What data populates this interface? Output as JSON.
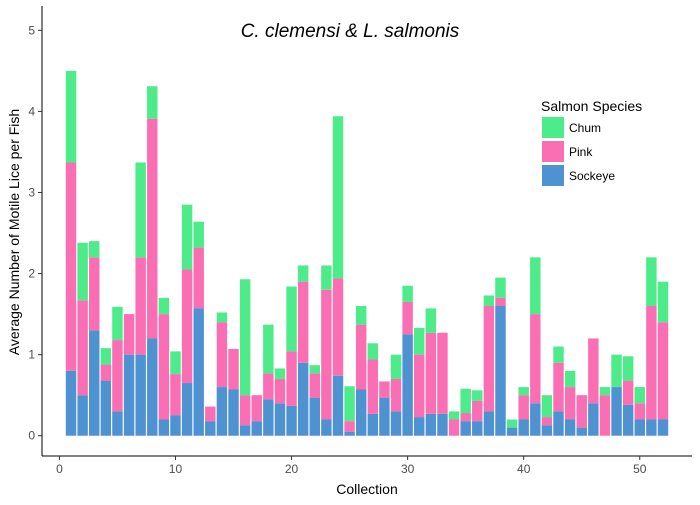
{
  "chart_data": {
    "type": "bar",
    "stacked": true,
    "title": "C. clemensi & L. salmonis",
    "xlabel": "Collection",
    "ylabel": "Average Number of Motile Lice per Fish",
    "xlim": [
      -1.5,
      54.5
    ],
    "ylim": [
      -0.25,
      5.3
    ],
    "xticks": [
      0,
      10,
      20,
      30,
      40,
      50
    ],
    "yticks": [
      0,
      1,
      2,
      3,
      4,
      5
    ],
    "grid": false,
    "legend": {
      "title": "Salmon Species",
      "position": "right-top"
    },
    "x": [
      1,
      2,
      3,
      4,
      5,
      6,
      7,
      8,
      9,
      10,
      11,
      12,
      13,
      14,
      15,
      16,
      17,
      18,
      19,
      20,
      21,
      22,
      23,
      24,
      25,
      26,
      27,
      28,
      29,
      30,
      31,
      32,
      33,
      34,
      35,
      36,
      37,
      38,
      39,
      40,
      41,
      42,
      43,
      44,
      45,
      46,
      47,
      48,
      49,
      50,
      51,
      52
    ],
    "series": [
      {
        "name": "Sockeye",
        "color": "#4f92d1",
        "values": [
          0.8,
          0.5,
          1.3,
          0.68,
          0.3,
          1.0,
          1.0,
          1.2,
          0.2,
          0.25,
          0.65,
          1.57,
          0.18,
          0.6,
          0.57,
          0.13,
          0.18,
          0.45,
          0.4,
          0.37,
          0.9,
          0.47,
          0.2,
          0.74,
          0.05,
          0.57,
          0.27,
          0.47,
          0.3,
          1.25,
          0.23,
          0.27,
          0.27,
          0,
          0.18,
          0.18,
          0.3,
          1.6,
          0.1,
          0.2,
          0.4,
          0.13,
          0.3,
          0.2,
          0.1,
          0.4,
          0,
          0.6,
          0.38,
          0.2,
          0.2,
          0.2
        ]
      },
      {
        "name": "Pink",
        "color": "#fa6fb4",
        "values": [
          2.57,
          1.17,
          0.9,
          0.2,
          0.88,
          0.5,
          1.2,
          2.71,
          1.3,
          0.51,
          1.4,
          0.75,
          0.18,
          0.8,
          0.5,
          0.37,
          0.32,
          0.32,
          0.3,
          0.67,
          1.0,
          0.3,
          1.6,
          1.2,
          0.13,
          0.8,
          0.67,
          0.2,
          0.4,
          0.4,
          0.77,
          1.0,
          1.0,
          0.2,
          0.1,
          0.25,
          1.3,
          0.1,
          0,
          0.3,
          1.1,
          0.1,
          0.6,
          0.4,
          0.4,
          0.8,
          0.5,
          0,
          0.3,
          0.2,
          1.4,
          1.2
        ]
      },
      {
        "name": "Chum",
        "color": "#4deb8a",
        "values": [
          1.13,
          0.71,
          0.2,
          0.2,
          0.41,
          0,
          1.17,
          0.4,
          0.2,
          0.28,
          0.8,
          0.32,
          0,
          0.12,
          0,
          1.43,
          0,
          0.6,
          0.13,
          0.8,
          0.2,
          0.1,
          0.3,
          2.0,
          0.43,
          0.23,
          0.2,
          0,
          0.3,
          0.2,
          0.33,
          0.3,
          0,
          0.1,
          0.3,
          0.13,
          0.13,
          0.25,
          0.1,
          0.1,
          0.7,
          0.27,
          0.2,
          0.2,
          0,
          0,
          0.1,
          0.4,
          0.3,
          0.2,
          0.6,
          0.5
        ]
      }
    ]
  }
}
